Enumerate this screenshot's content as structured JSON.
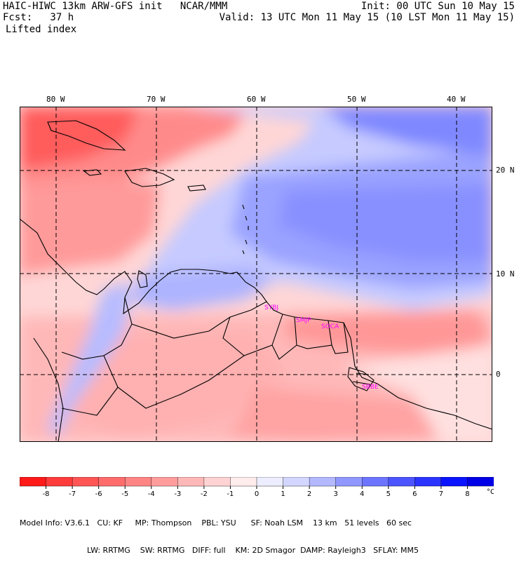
{
  "header": {
    "line1_left": "HAIC-HIWC 13km ARW-GFS init   NCAR/MMM",
    "line1_right": "Init: 00 UTC Sun 10 May 15",
    "line2_left": "Fcst:   37 h",
    "line2_right": "Valid: 13 UTC Mon 11 May 15 (10 LST Mon 11 May 15)",
    "field": "Lifted index"
  },
  "map": {
    "lon_labels": [
      "80 W",
      "70 W",
      "60 W",
      "50 W",
      "40 W"
    ],
    "lat_labels": [
      "20 N",
      "10 N",
      "0"
    ],
    "city_labels": [
      "SYBJ",
      "SMJP",
      "SOCA",
      "SBBE"
    ]
  },
  "colorbar": {
    "ticks": [
      "-8",
      "-7",
      "-6",
      "-5",
      "-4",
      "-3",
      "-2",
      "-1",
      "0",
      "1",
      "2",
      "3",
      "4",
      "5",
      "6",
      "7",
      "8"
    ],
    "unit": "°C",
    "colors": [
      "#ff1a1a",
      "#ff3b3b",
      "#ff5555",
      "#ff6c6c",
      "#ff8585",
      "#ff9d9d",
      "#ffb8b8",
      "#ffd3d3",
      "#ffecec",
      "#ecedff",
      "#d3d6ff",
      "#b3b8ff",
      "#9097ff",
      "#6d75ff",
      "#4c54ff",
      "#2b34ff",
      "#0a14ff",
      "#0000e6"
    ]
  },
  "footer": {
    "line1": "Model Info: V3.6.1   CU: KF     MP: Thompson    PBL: YSU      SF: Noah LSM    13 km   51 levels   60 sec",
    "line2": "LW: RRTMG    SW: RRTMG   DIFF: full    KM: 2D Smagor  DAMP: Rayleigh3   SFLAY: MM5"
  }
}
